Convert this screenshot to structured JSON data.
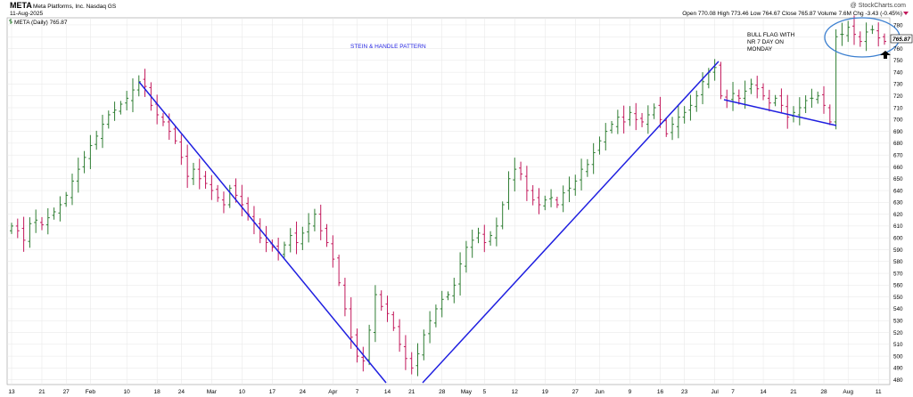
{
  "header": {
    "ticker": "META",
    "company": "Meta Platforms, Inc.  Nasdaq GS",
    "date": "11-Aug-2025",
    "brand": "@ StockCharts.com",
    "ohlc_text": "Open 770.08  High 773.46  Low 764.67  Close 765.87  Volume 7.6M  Chg -3.43 (-0.45%)",
    "legend_text": "META (Daily) 765.87",
    "last_price_label": "765.87"
  },
  "annotations": {
    "pattern": "STEIN & HANDLE PATTERN",
    "flag": [
      "BULL FLAG WITH",
      "NR 7 DAY ON",
      "MONDAY"
    ]
  },
  "colors": {
    "up": "#2e7d32",
    "down": "#c2185b",
    "trendline": "#1f1fe0",
    "ellipse": "#3b7fd0",
    "grid": "#e6e6e6",
    "text": "#000000"
  },
  "chart_data": {
    "type": "ohlc",
    "ylim": [
      476,
      786
    ],
    "yticks": [
      480,
      490,
      500,
      510,
      520,
      530,
      540,
      550,
      560,
      570,
      580,
      590,
      600,
      610,
      620,
      630,
      640,
      650,
      660,
      670,
      680,
      690,
      700,
      710,
      720,
      730,
      740,
      750,
      760,
      770,
      780
    ],
    "xticks": [
      {
        "label": "13",
        "i": 0
      },
      {
        "label": "21",
        "i": 5
      },
      {
        "label": "27",
        "i": 9
      },
      {
        "label": "Feb",
        "i": 13
      },
      {
        "label": "10",
        "i": 19
      },
      {
        "label": "18",
        "i": 24
      },
      {
        "label": "24",
        "i": 28
      },
      {
        "label": "Mar",
        "i": 33
      },
      {
        "label": "10",
        "i": 38
      },
      {
        "label": "17",
        "i": 43
      },
      {
        "label": "24",
        "i": 48
      },
      {
        "label": "Apr",
        "i": 53
      },
      {
        "label": "7",
        "i": 57
      },
      {
        "label": "14",
        "i": 62
      },
      {
        "label": "21",
        "i": 66
      },
      {
        "label": "28",
        "i": 71
      },
      {
        "label": "May",
        "i": 75
      },
      {
        "label": "5",
        "i": 78
      },
      {
        "label": "12",
        "i": 83
      },
      {
        "label": "19",
        "i": 88
      },
      {
        "label": "27",
        "i": 93
      },
      {
        "label": "Jun",
        "i": 97
      },
      {
        "label": "9",
        "i": 102
      },
      {
        "label": "16",
        "i": 107
      },
      {
        "label": "23",
        "i": 111
      },
      {
        "label": "Jul",
        "i": 116
      },
      {
        "label": "7",
        "i": 119
      },
      {
        "label": "14",
        "i": 124
      },
      {
        "label": "21",
        "i": 129
      },
      {
        "label": "28",
        "i": 134
      },
      {
        "label": "Aug",
        "i": 138
      },
      {
        "label": "11",
        "i": 143
      }
    ],
    "closes": [
      610,
      606,
      598,
      612,
      615,
      611,
      617,
      622,
      628,
      636,
      648,
      658,
      668,
      678,
      686,
      696,
      704,
      708,
      713,
      718,
      725,
      732,
      728,
      712,
      704,
      698,
      690,
      682,
      668,
      652,
      658,
      650,
      646,
      640,
      634,
      628,
      642,
      636,
      628,
      620,
      612,
      600,
      596,
      592,
      588,
      594,
      602,
      596,
      604,
      612,
      620,
      606,
      596,
      582,
      562,
      540,
      516,
      500,
      496,
      522,
      552,
      542,
      536,
      524,
      510,
      498,
      490,
      502,
      518,
      530,
      540,
      548,
      552,
      560,
      578,
      592,
      598,
      604,
      596,
      602,
      610,
      628,
      650,
      658,
      654,
      640,
      632,
      628,
      632,
      634,
      628,
      638,
      642,
      648,
      658,
      662,
      672,
      682,
      690,
      696,
      702,
      698,
      706,
      700,
      698,
      704,
      710,
      700,
      688,
      696,
      702,
      706,
      712,
      720,
      732,
      740,
      744,
      720,
      716,
      722,
      718,
      724,
      730,
      726,
      720,
      714,
      718,
      712,
      702,
      706,
      710,
      716,
      718,
      720,
      712,
      698,
      770,
      772,
      778,
      772,
      766,
      774,
      776,
      769,
      766
    ]
  }
}
